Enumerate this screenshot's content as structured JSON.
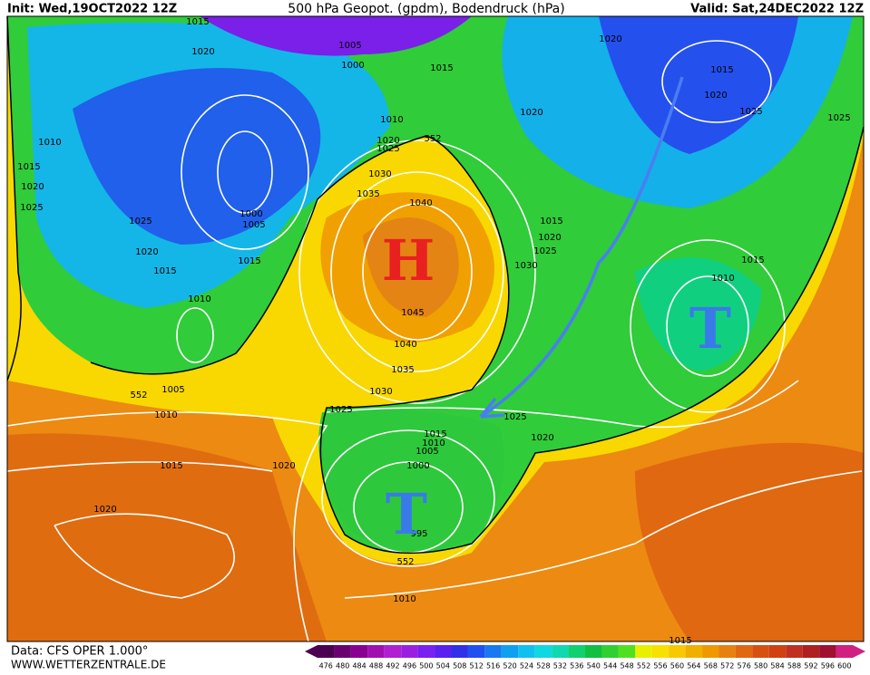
{
  "header": {
    "init": "Init: Wed,19OCT2022 12Z",
    "title": "500 hPa Geopot. (gpdm), Bodendruck (hPa)",
    "valid": "Valid: Sat,24DEC2022 12Z"
  },
  "map": {
    "isobar_labels": [
      1015,
      1020,
      1005,
      1000,
      1015,
      1020,
      1015,
      1020,
      1025,
      1025,
      1010,
      1010,
      1020,
      1020,
      1025,
      552,
      1015,
      1030,
      1020,
      1035,
      1040,
      1025,
      1000,
      1005,
      1025,
      1015,
      1020,
      1025,
      1020,
      1015,
      1030,
      1015,
      1015,
      1010,
      1010,
      1045,
      1040,
      1035,
      1005,
      552,
      1030,
      1025,
      1010,
      1025,
      1015,
      1020,
      1010,
      1005,
      1015,
      1020,
      1000,
      1020,
      995,
      552,
      1010,
      1015
    ],
    "symbols": [
      "H",
      "T",
      "T"
    ]
  },
  "footer": {
    "data": "Data: CFS OPER 1.000°",
    "site": "WWW.WETTERZENTRALE.DE"
  },
  "colorbar": {
    "ticks": [
      476,
      480,
      484,
      488,
      492,
      496,
      500,
      504,
      508,
      512,
      516,
      520,
      524,
      528,
      532,
      536,
      540,
      544,
      548,
      552,
      556,
      560,
      564,
      568,
      572,
      576,
      580,
      584,
      588,
      592,
      596,
      600
    ],
    "colors": [
      "#4b0050",
      "#6a0070",
      "#8a0090",
      "#a010b0",
      "#b020d0",
      "#9a20e0",
      "#7a20f0",
      "#5a20f0",
      "#3030e8",
      "#2050f0",
      "#1a78f0",
      "#10a0f0",
      "#10c0f0",
      "#10d8e0",
      "#10d8b0",
      "#10d070",
      "#10c040",
      "#30d030",
      "#50e020",
      "#e8f000",
      "#f8e000",
      "#f8c800",
      "#f0b000",
      "#f09800",
      "#e88010",
      "#e06810",
      "#d85010",
      "#d04010",
      "#c03020",
      "#b02020",
      "#a01030",
      "#d02080"
    ]
  }
}
